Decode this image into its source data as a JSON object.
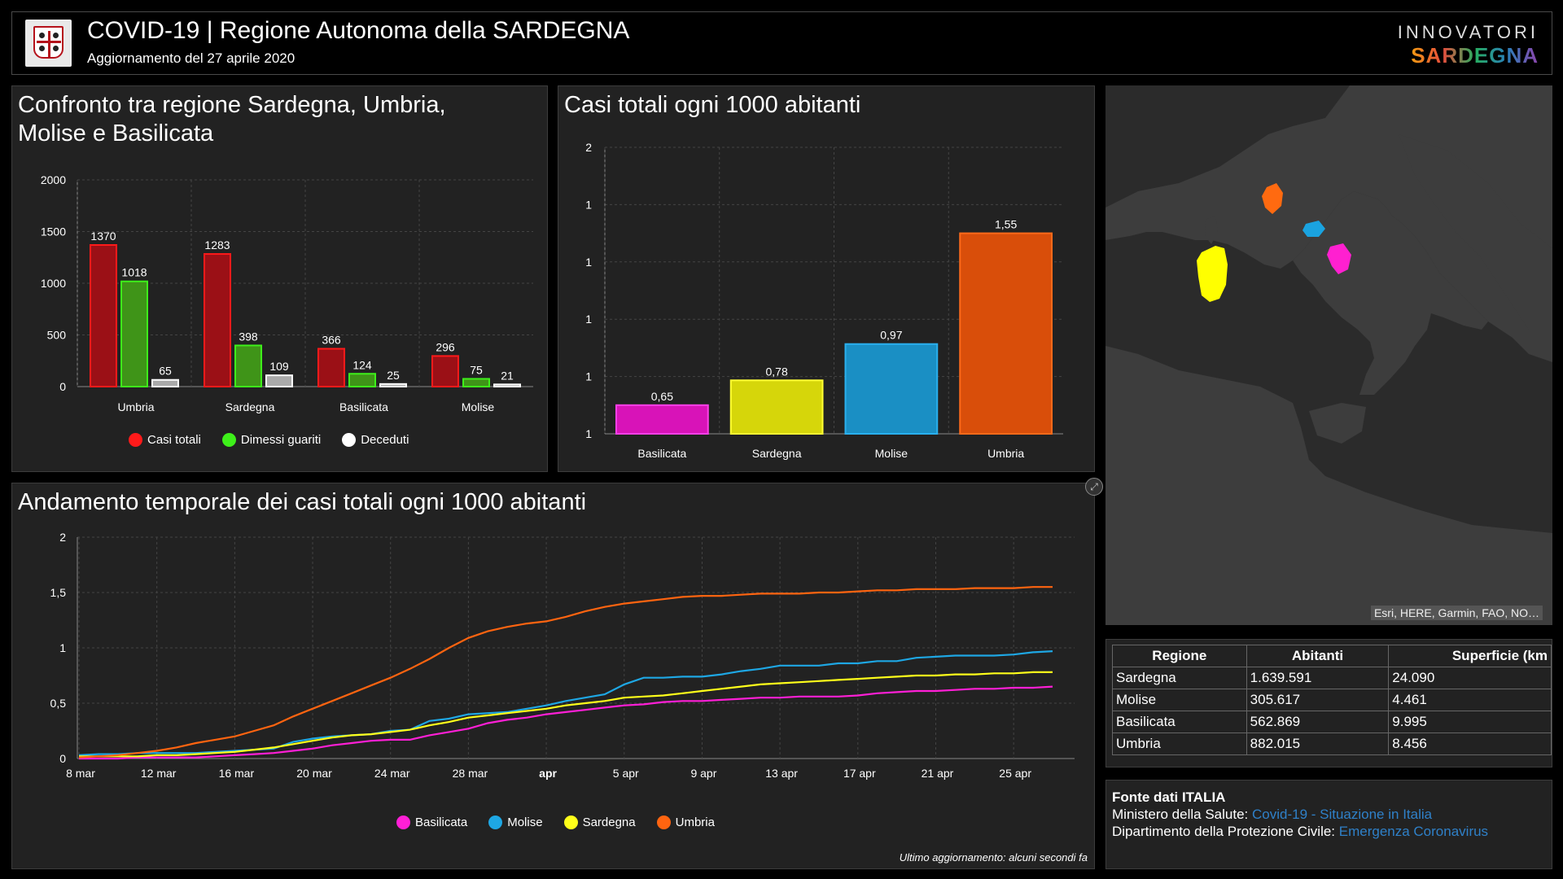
{
  "header": {
    "title": "COVID-19 | Regione Autonoma della SARDEGNA",
    "subtitle": "Aggiornamento del 27 aprile 2020",
    "brand_top": "INNOVATORI",
    "brand_bottom": "SARDEGNA"
  },
  "charts": {
    "bar_group_title": "Confronto tra regione Sardegna, Umbria, Molise e Basilicata",
    "bar_single_title": "Casi totali ogni 1000 abitanti",
    "line_title": "Andamento temporale dei casi totali ogni 1000 abitanti"
  },
  "chart_data": [
    {
      "type": "bar",
      "title": "Confronto tra regione Sardegna, Umbria, Molise e Basilicata",
      "categories": [
        "Umbria",
        "Sardegna",
        "Basilicata",
        "Molise"
      ],
      "series": [
        {
          "name": "Casi totali",
          "color": "#9b1016",
          "values": [
            1370,
            1283,
            366,
            296
          ]
        },
        {
          "name": "Dimessi guariti",
          "color": "#3f9418",
          "values": [
            1018,
            398,
            124,
            75
          ]
        },
        {
          "name": "Deceduti",
          "color": "#aaaaaa",
          "values": [
            65,
            109,
            25,
            21
          ]
        }
      ],
      "legend_colors": [
        "#ff1a1a",
        "#3ef01a",
        "#ffffff"
      ],
      "yticks": [
        0,
        500,
        1000,
        1500,
        2000
      ],
      "ylim": [
        0,
        2000
      ],
      "grid": true,
      "legend": "bottom"
    },
    {
      "type": "bar",
      "title": "Casi totali ogni 1000 abitanti",
      "categories": [
        "Basilicata",
        "Sardegna",
        "Molise",
        "Umbria"
      ],
      "values": [
        0.65,
        0.78,
        0.97,
        1.55
      ],
      "value_labels": [
        "0,65",
        "0,78",
        "0,97",
        "1,55"
      ],
      "colors": [
        "#d813b8",
        "#d6d60a",
        "#1a8fc4",
        "#d94e0a"
      ],
      "border_colors": [
        "#ff40e8",
        "#ffff33",
        "#2ab0ee",
        "#ff6a1a"
      ],
      "ytick_labels": [
        "1",
        "1",
        "1",
        "1",
        "1",
        "2"
      ],
      "ylim": [
        0.5,
        2.0
      ],
      "grid": true
    },
    {
      "type": "line",
      "title": "Andamento temporale dei casi totali ogni 1000 abitanti",
      "x": [
        "8 mar",
        "9 mar",
        "10 mar",
        "11 mar",
        "12 mar",
        "13 mar",
        "14 mar",
        "15 mar",
        "16 mar",
        "17 mar",
        "18 mar",
        "19 mar",
        "20 mar",
        "21 mar",
        "22 mar",
        "23 mar",
        "24 mar",
        "25 mar",
        "26 mar",
        "27 mar",
        "28 mar",
        "29 mar",
        "30 mar",
        "31 mar",
        "1 apr",
        "2 apr",
        "3 apr",
        "4 apr",
        "5 apr",
        "6 apr",
        "7 apr",
        "8 apr",
        "9 apr",
        "10 apr",
        "11 apr",
        "12 apr",
        "13 apr",
        "14 apr",
        "15 apr",
        "16 apr",
        "17 apr",
        "18 apr",
        "19 apr",
        "20 apr",
        "21 apr",
        "22 apr",
        "23 apr",
        "24 apr",
        "25 apr",
        "26 apr",
        "27 apr"
      ],
      "xtick_labels": [
        "8 mar",
        "12 mar",
        "16 mar",
        "20 mar",
        "24 mar",
        "28 mar",
        "apr",
        "5 apr",
        "9 apr",
        "13 apr",
        "17 apr",
        "21 apr",
        "25 apr"
      ],
      "xtick_dates": [
        "8 mar",
        "12 mar",
        "16 mar",
        "20 mar",
        "24 mar",
        "28 mar",
        "1 apr",
        "5 apr",
        "9 apr",
        "13 apr",
        "17 apr",
        "21 apr",
        "25 apr"
      ],
      "ytick_labels": [
        "0",
        "0,5",
        "1",
        "1,5",
        "2"
      ],
      "yticks": [
        0,
        0.5,
        1,
        1.5,
        2
      ],
      "ylim": [
        0,
        2
      ],
      "grid": true,
      "legend": "bottom",
      "series": [
        {
          "name": "Basilicata",
          "color": "#ff1fd6",
          "values": [
            0.0,
            0.0,
            0.0,
            0.01,
            0.01,
            0.01,
            0.01,
            0.02,
            0.03,
            0.04,
            0.05,
            0.07,
            0.09,
            0.12,
            0.14,
            0.16,
            0.17,
            0.17,
            0.21,
            0.24,
            0.27,
            0.32,
            0.35,
            0.37,
            0.4,
            0.42,
            0.44,
            0.46,
            0.48,
            0.49,
            0.51,
            0.52,
            0.52,
            0.53,
            0.54,
            0.55,
            0.55,
            0.56,
            0.56,
            0.56,
            0.57,
            0.59,
            0.6,
            0.61,
            0.61,
            0.62,
            0.63,
            0.63,
            0.64,
            0.64,
            0.65
          ]
        },
        {
          "name": "Molise",
          "color": "#1ea7e4",
          "values": [
            0.03,
            0.04,
            0.04,
            0.05,
            0.05,
            0.05,
            0.05,
            0.06,
            0.07,
            0.08,
            0.09,
            0.15,
            0.18,
            0.2,
            0.21,
            0.22,
            0.25,
            0.26,
            0.34,
            0.36,
            0.4,
            0.41,
            0.42,
            0.45,
            0.48,
            0.52,
            0.55,
            0.58,
            0.67,
            0.73,
            0.73,
            0.74,
            0.74,
            0.76,
            0.79,
            0.81,
            0.84,
            0.84,
            0.84,
            0.86,
            0.86,
            0.88,
            0.88,
            0.91,
            0.92,
            0.93,
            0.93,
            0.93,
            0.94,
            0.96,
            0.97
          ]
        },
        {
          "name": "Sardegna",
          "color": "#ffff1a",
          "values": [
            0.02,
            0.02,
            0.02,
            0.02,
            0.03,
            0.03,
            0.04,
            0.05,
            0.06,
            0.08,
            0.1,
            0.13,
            0.16,
            0.19,
            0.21,
            0.22,
            0.24,
            0.26,
            0.3,
            0.33,
            0.37,
            0.39,
            0.41,
            0.43,
            0.45,
            0.48,
            0.5,
            0.52,
            0.55,
            0.56,
            0.57,
            0.59,
            0.61,
            0.63,
            0.65,
            0.67,
            0.68,
            0.69,
            0.7,
            0.71,
            0.72,
            0.73,
            0.74,
            0.75,
            0.75,
            0.76,
            0.76,
            0.77,
            0.77,
            0.78,
            0.78
          ]
        },
        {
          "name": "Umbria",
          "color": "#ff6410",
          "values": [
            0.01,
            0.02,
            0.03,
            0.05,
            0.07,
            0.1,
            0.14,
            0.17,
            0.2,
            0.25,
            0.3,
            0.38,
            0.45,
            0.52,
            0.59,
            0.66,
            0.73,
            0.81,
            0.9,
            1.0,
            1.09,
            1.15,
            1.19,
            1.22,
            1.24,
            1.28,
            1.33,
            1.37,
            1.4,
            1.42,
            1.44,
            1.46,
            1.47,
            1.47,
            1.48,
            1.49,
            1.49,
            1.49,
            1.5,
            1.5,
            1.51,
            1.52,
            1.52,
            1.53,
            1.53,
            1.53,
            1.54,
            1.54,
            1.54,
            1.55,
            1.55
          ]
        }
      ]
    }
  ],
  "map": {
    "attribution": "Esri, HERE, Garmin, FAO, NO…",
    "highlight_colors": {
      "Sardegna": "#ffff00",
      "Umbria": "#ff6a10",
      "Molise": "#1aa3e0",
      "Basilicata": "#ff20d0"
    }
  },
  "table": {
    "headers": [
      "Regione",
      "Abitanti",
      "Superficie (km"
    ],
    "rows": [
      [
        "Sardegna",
        "1.639.591",
        "24.090"
      ],
      [
        "Molise",
        "305.617",
        "4.461"
      ],
      [
        "Basilicata",
        "562.869",
        "9.995"
      ],
      [
        "Umbria",
        "882.015",
        "8.456"
      ]
    ]
  },
  "sources": {
    "title": "Fonte dati ITALIA",
    "line1_label": "Ministero della Salute: ",
    "line1_link": "Covid-19 - Situazione in Italia",
    "line2_label": "Dipartimento della Protezione Civile: ",
    "line2_link": "Emergenza Coronavirus"
  },
  "footer": {
    "updated": "Ultimo aggiornamento: alcuni secondi fa",
    "expand_icon": "expand-icon"
  }
}
